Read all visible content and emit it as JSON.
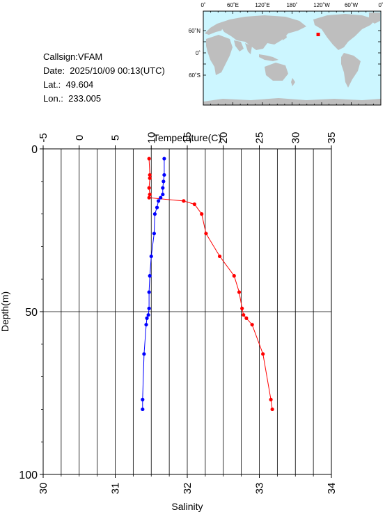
{
  "info": {
    "callsign": "Callsign:VFAM",
    "date": "Date:  2025/10/09 00:13(UTC)",
    "lat": "Lat.:  49.604",
    "lon": "Lon.:  233.005"
  },
  "map": {
    "top_labels": [
      "0˚",
      "60˚E",
      "120˚E",
      "180˚",
      "120˚W",
      "60˚W",
      "0˚"
    ],
    "left_labels": [
      "60˚N",
      "0˚",
      "60˚S"
    ],
    "ocean_color": "#ccf6ff",
    "land_color": "#bebebe",
    "marker_color": "#ff0000",
    "station": {
      "lat": 49.604,
      "lon": 233.005
    }
  },
  "chart_data": {
    "type": "line",
    "ylabel": "Depth(m)",
    "ylim": [
      0,
      100
    ],
    "y_ticks": [
      0,
      50,
      100
    ],
    "y_inverted": true,
    "top_axis": {
      "label": "Temperature(C)",
      "lim": [
        -5,
        35
      ],
      "ticks": [
        -5,
        0,
        5,
        10,
        15,
        20,
        25,
        30,
        35
      ]
    },
    "bottom_axis": {
      "label": "Salinity",
      "lim": [
        30,
        34
      ],
      "ticks": [
        30,
        31,
        32,
        33,
        34
      ]
    },
    "grid": "vertical every 2.5 C, horizontal at 50 m",
    "series": [
      {
        "axis": "temperature",
        "color": "#ff0000",
        "points": [
          [
            9.7,
            3
          ],
          [
            9.8,
            8
          ],
          [
            9.8,
            9
          ],
          [
            9.7,
            12
          ],
          [
            9.8,
            14
          ],
          [
            9.7,
            15
          ],
          [
            14.5,
            16
          ],
          [
            16.0,
            17
          ],
          [
            17.0,
            20
          ],
          [
            17.6,
            26
          ],
          [
            19.5,
            33
          ],
          [
            21.5,
            39
          ],
          [
            22.2,
            44
          ],
          [
            22.6,
            49
          ],
          [
            22.8,
            51
          ],
          [
            23.2,
            52
          ],
          [
            24.0,
            54
          ],
          [
            25.5,
            63
          ],
          [
            26.6,
            77
          ],
          [
            26.8,
            80
          ]
        ]
      },
      {
        "axis": "salinity",
        "color": "#0000ff",
        "points": [
          [
            31.68,
            3
          ],
          [
            31.68,
            8
          ],
          [
            31.67,
            10
          ],
          [
            31.66,
            12
          ],
          [
            31.66,
            14
          ],
          [
            31.63,
            15
          ],
          [
            31.6,
            16
          ],
          [
            31.58,
            18
          ],
          [
            31.55,
            20
          ],
          [
            31.54,
            26
          ],
          [
            31.5,
            33
          ],
          [
            31.48,
            39
          ],
          [
            31.47,
            44
          ],
          [
            31.47,
            49
          ],
          [
            31.46,
            51
          ],
          [
            31.44,
            52
          ],
          [
            31.43,
            54
          ],
          [
            31.4,
            63
          ],
          [
            31.38,
            77
          ],
          [
            31.38,
            80
          ]
        ]
      }
    ]
  }
}
